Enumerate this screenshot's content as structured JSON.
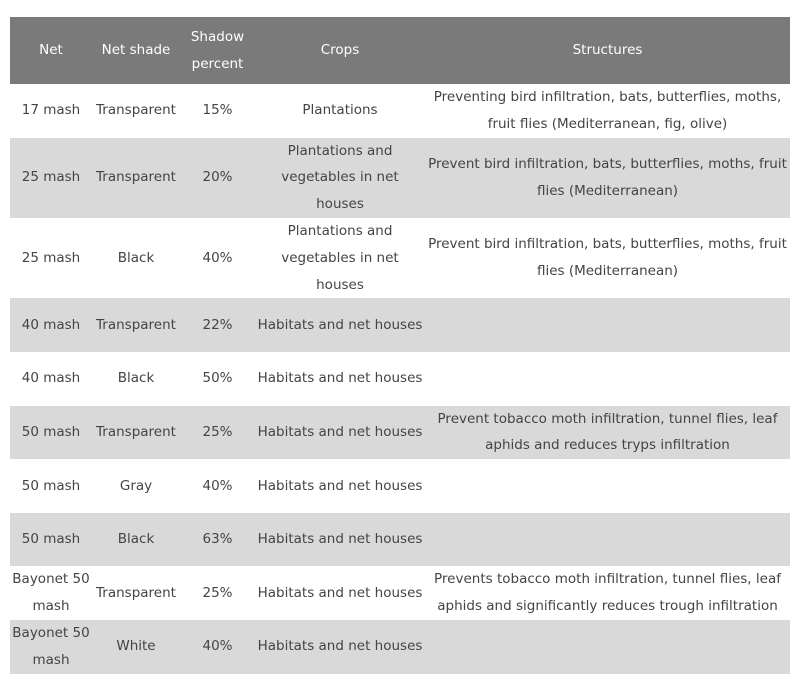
{
  "headers": [
    "Net",
    "Net shade",
    "Shadow percent",
    "Crops",
    "Structures"
  ],
  "rows": [
    [
      "17 mash",
      "Transparent",
      "15%",
      "Plantations",
      "Preventing bird infiltration, bats, butterflies, moths, fruit flies (Mediterranean, fig, olive)"
    ],
    [
      "25 mash",
      "Transparent",
      "20%",
      "Plantations and vegetables in net houses",
      "Prevent bird infiltration, bats, butterflies, moths, fruit flies (Mediterranean)"
    ],
    [
      "25 mash",
      "Black",
      "40%",
      "Plantations and vegetables in net houses",
      "Prevent bird infiltration, bats, butterflies, moths, fruit flies (Mediterranean)"
    ],
    [
      "40 mash",
      "Transparent",
      "22%",
      "Habitats and net houses",
      ""
    ],
    [
      "40 mash",
      "Black",
      "50%",
      "Habitats and net houses",
      ""
    ],
    [
      "50 mash",
      "Transparent",
      "25%",
      "Habitats and net houses",
      "Prevent tobacco moth infiltration, tunnel flies, leaf aphids and reduces tryps infiltration"
    ],
    [
      "50 mash",
      "Gray",
      "40%",
      "Habitats and net houses",
      ""
    ],
    [
      "50 mash",
      "Black",
      "63%",
      "Habitats and net houses",
      ""
    ],
    [
      "Bayonet 50 mash",
      "Transparent",
      "25%",
      "Habitats and net houses",
      "Prevents tobacco moth infiltration, tunnel flies, leaf aphids and significantly reduces trough infiltration"
    ],
    [
      "Bayonet 50 mash",
      "White",
      "40%",
      "Habitats and net houses",
      ""
    ]
  ]
}
